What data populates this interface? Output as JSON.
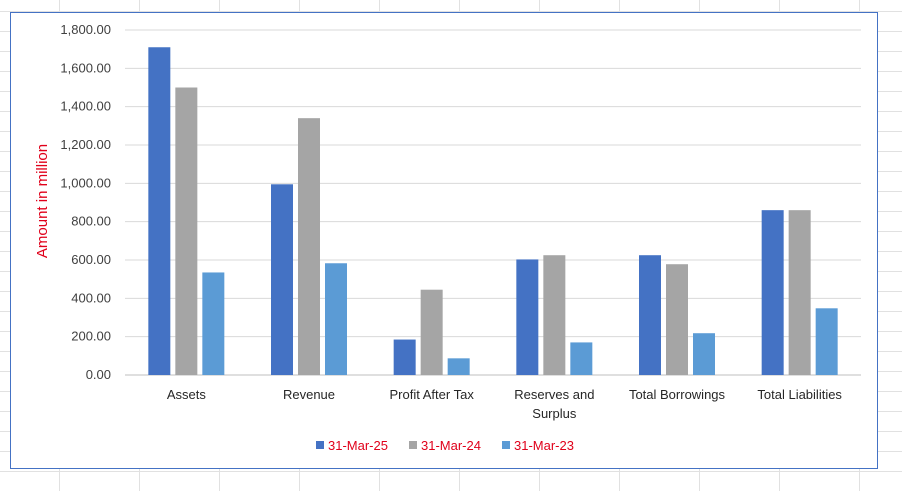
{
  "chart_data": {
    "type": "bar",
    "categories": [
      "Assets",
      "Revenue",
      "Profit After Tax",
      "Reserves and Surplus",
      "Total Borrowings",
      "Total Liabilities"
    ],
    "category_lines": [
      [
        "Assets"
      ],
      [
        "Revenue"
      ],
      [
        "Profit After Tax"
      ],
      [
        "Reserves and",
        "Surplus"
      ],
      [
        "Total Borrowings"
      ],
      [
        "Total Liabilities"
      ]
    ],
    "series": [
      {
        "name": "31-Mar-25",
        "color": "#4472c4",
        "values": [
          1710,
          995,
          185,
          603,
          625,
          860
        ]
      },
      {
        "name": "31-Mar-24",
        "color": "#a5a5a5",
        "values": [
          1500,
          1340,
          445,
          625,
          578,
          860
        ]
      },
      {
        "name": "31-Mar-23",
        "color": "#5b9bd5",
        "values": [
          535,
          583,
          87,
          170,
          218,
          348
        ]
      }
    ],
    "ylabel": "Amount in million",
    "ylabel_color": "#e0001a",
    "legend_text_color": "#e0001a",
    "ylim": [
      0,
      1800
    ],
    "yticks": [
      0,
      200,
      400,
      600,
      800,
      1000,
      1200,
      1400,
      1600,
      1800
    ],
    "ytick_labels": [
      "0.00",
      "200.00",
      "400.00",
      "600.00",
      "800.00",
      "1,000.00",
      "1,200.00",
      "1,400.00",
      "1,600.00",
      "1,800.00"
    ],
    "grid": true,
    "legend_position": "bottom"
  }
}
